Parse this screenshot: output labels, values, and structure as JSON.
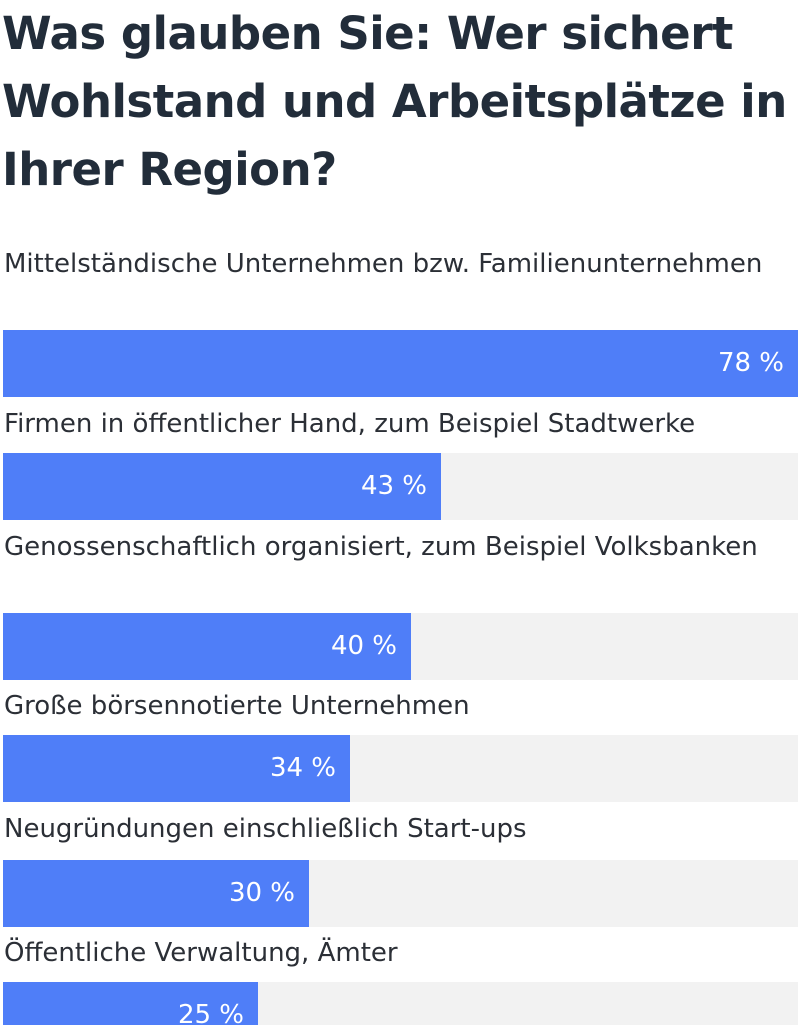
{
  "chart_data": {
    "type": "bar",
    "orientation": "horizontal",
    "title": "Was glauben Sie: Wer sichert Wohlstand und Arbeitsplätze in Ihrer Region?",
    "categories": [
      "Mittelständische Unternehmen bzw. Familienunternehmen",
      "Firmen in öffentlicher Hand, zum Beispiel Stadtwerke",
      "Genossenschaftlich organisiert, zum Beispiel Volksbanken",
      "Große börsennotierte Unternehmen",
      "Neugründungen einschließlich Start-ups",
      "Öffentliche Verwaltung, Ämter"
    ],
    "values": [
      78,
      43,
      40,
      34,
      30,
      25
    ],
    "value_labels": [
      "78 %",
      "43 %",
      "40 %",
      "34 %",
      "30 %",
      "25 %"
    ],
    "xlim": [
      0,
      78
    ],
    "grid": false,
    "legend": "none"
  },
  "colors": {
    "bar": "#4f7ef8",
    "track": "#f2f2f2",
    "title": "#222d3a",
    "label": "#2b2f36",
    "value_text": "#ffffff"
  }
}
